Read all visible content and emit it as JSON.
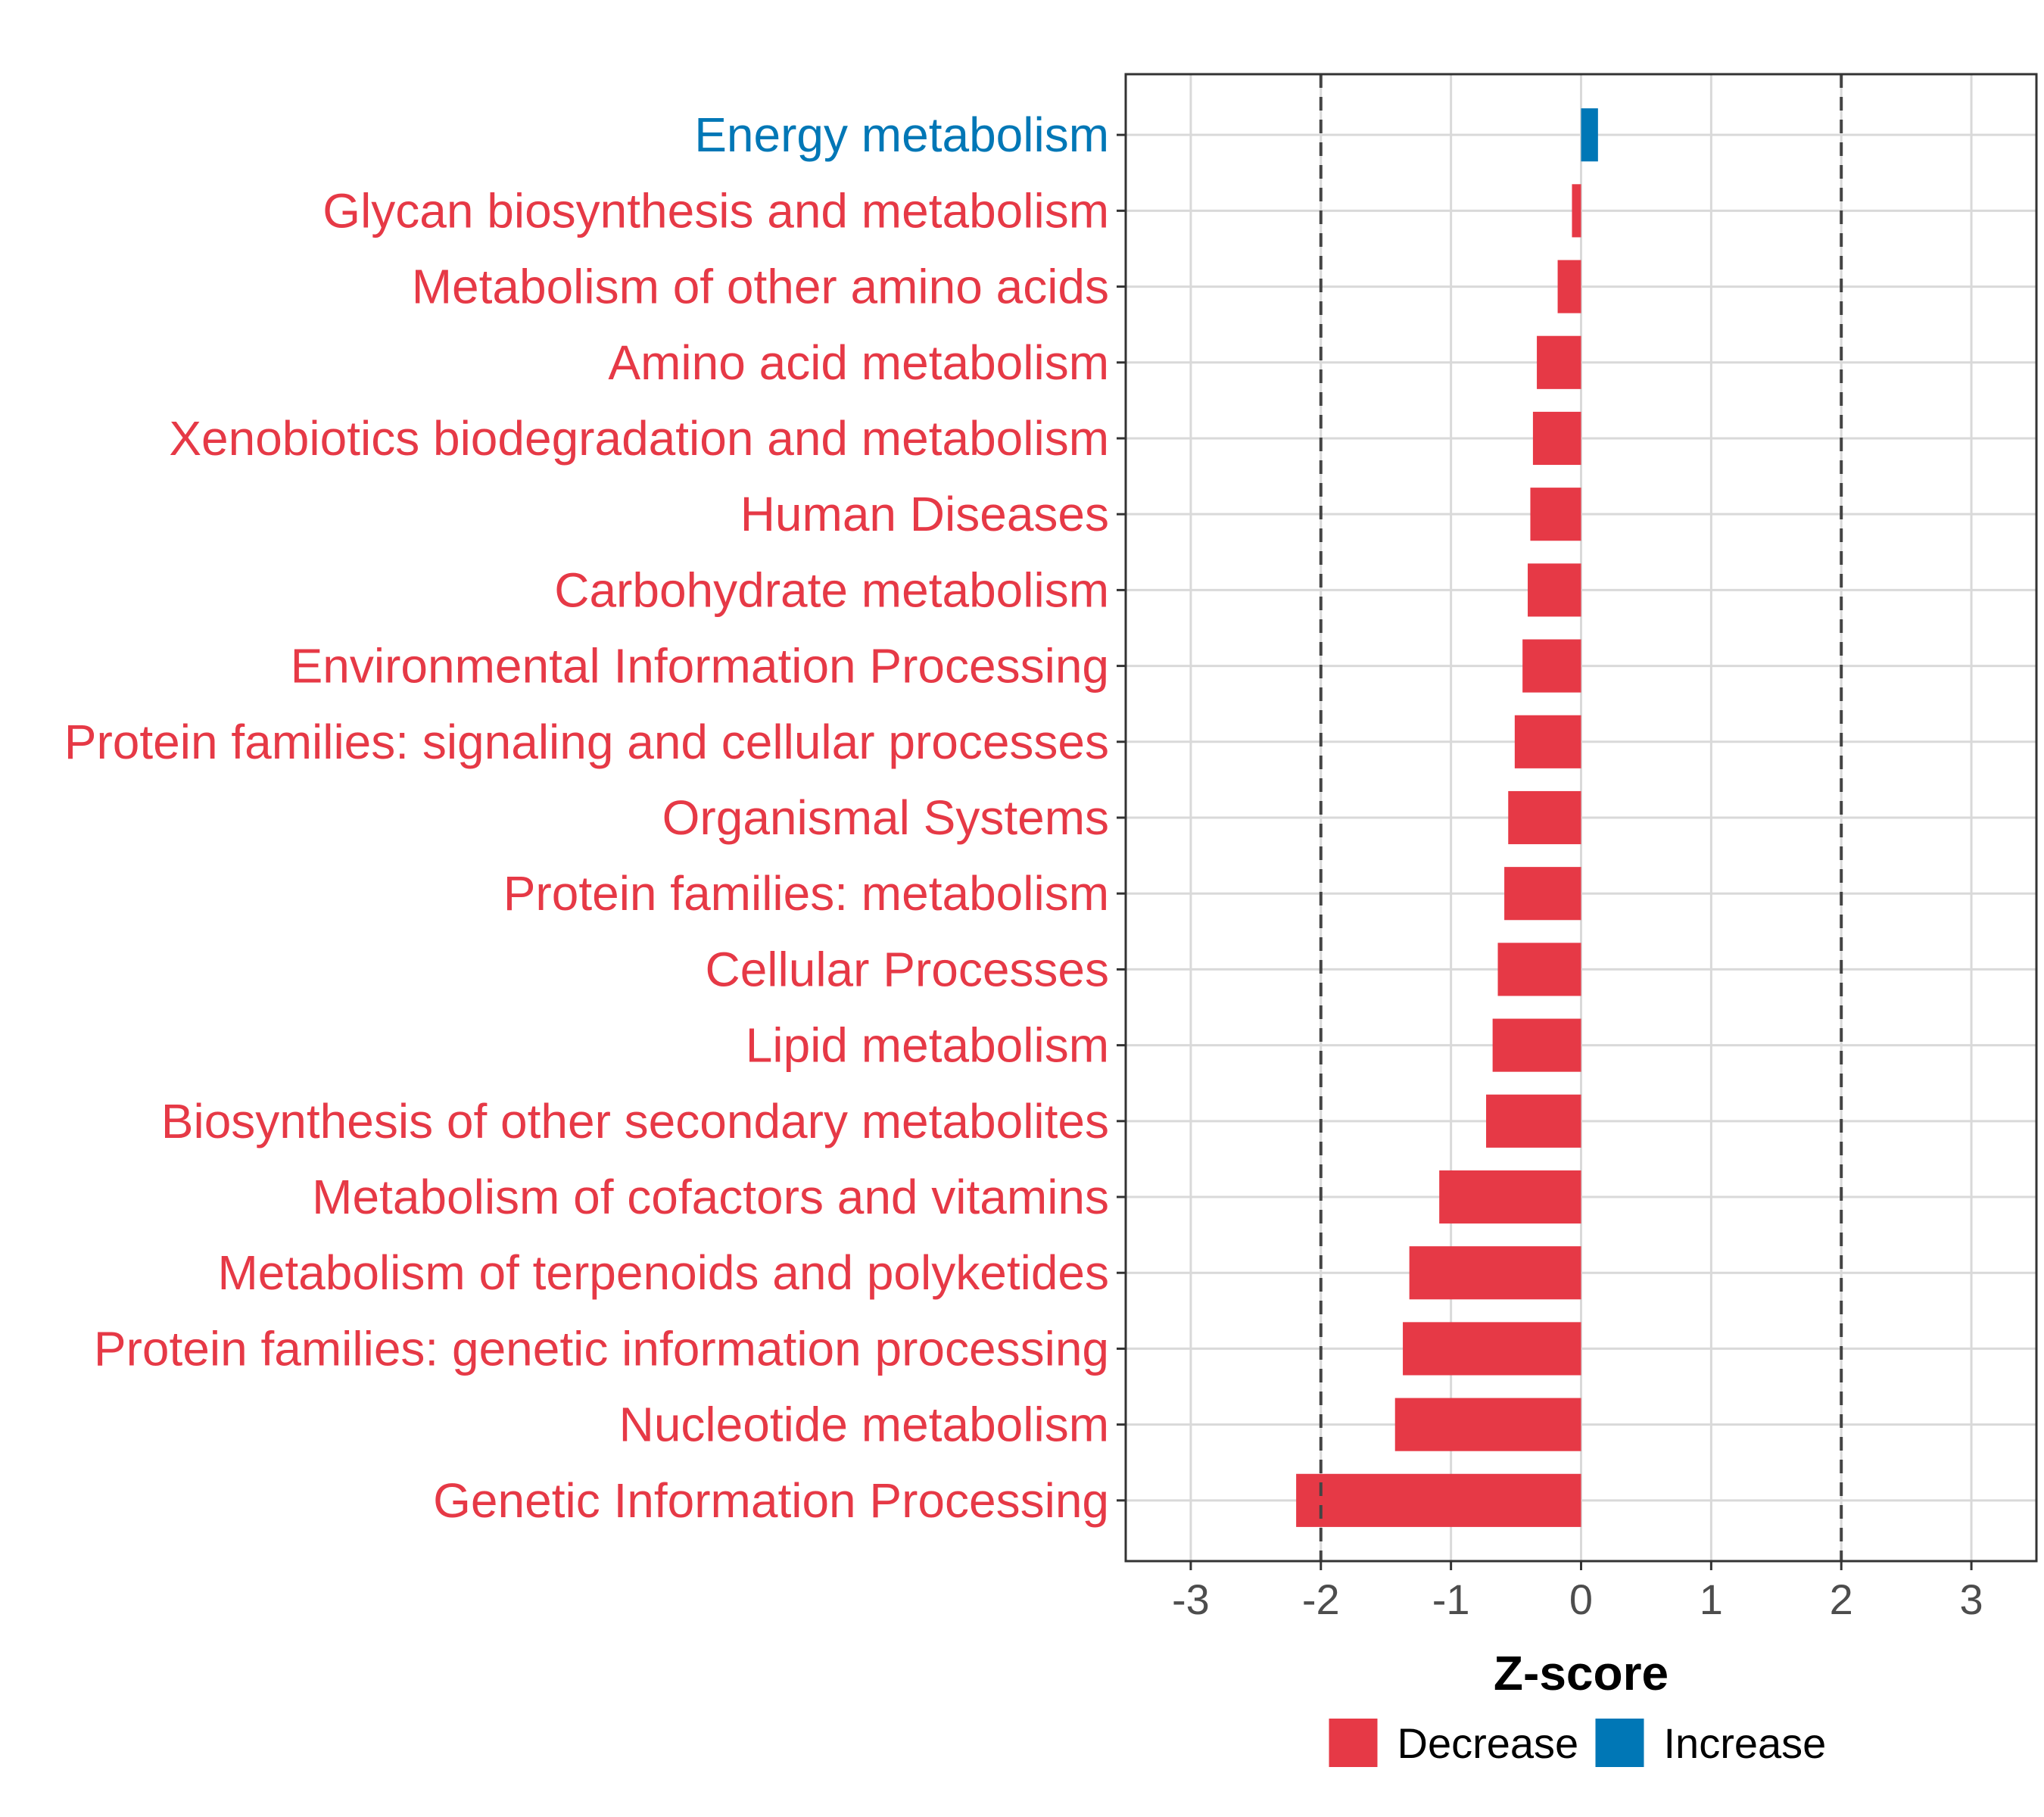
{
  "chart_data": {
    "type": "bar",
    "orientation": "horizontal",
    "title": "",
    "xlabel": "Z-score",
    "ylabel": "",
    "xlim": [
      -3.5,
      3.5
    ],
    "xticks": [
      -3,
      -2,
      -1,
      0,
      1,
      2,
      3
    ],
    "xtick_labels": [
      "-3",
      "-2",
      "-1",
      "0",
      "1",
      "2",
      "3"
    ],
    "reference_lines": [
      -2,
      2
    ],
    "grid": true,
    "categories": [
      "Energy metabolism",
      "Glycan biosynthesis and metabolism",
      "Metabolism of other amino acids",
      "Amino acid metabolism",
      "Xenobiotics biodegradation and metabolism",
      "Human Diseases",
      "Carbohydrate metabolism",
      "Environmental Information Processing",
      "Protein families: signaling and cellular processes",
      "Organismal Systems",
      "Protein families: metabolism",
      "Cellular Processes",
      "Lipid metabolism",
      "Biosynthesis of other secondary metabolites",
      "Metabolism of cofactors and vitamins",
      "Metabolism of terpenoids and polyketides",
      "Protein families: genetic information processing",
      "Nucleotide metabolism",
      "Genetic Information Processing"
    ],
    "values": [
      0.13,
      -0.07,
      -0.18,
      -0.34,
      -0.37,
      -0.39,
      -0.41,
      -0.45,
      -0.51,
      -0.56,
      -0.59,
      -0.64,
      -0.68,
      -0.73,
      -1.09,
      -1.32,
      -1.37,
      -1.43,
      -2.19
    ],
    "groups": [
      "Increase",
      "Decrease",
      "Decrease",
      "Decrease",
      "Decrease",
      "Decrease",
      "Decrease",
      "Decrease",
      "Decrease",
      "Decrease",
      "Decrease",
      "Decrease",
      "Decrease",
      "Decrease",
      "Decrease",
      "Decrease",
      "Decrease",
      "Decrease",
      "Decrease"
    ],
    "legend": {
      "position": "bottom",
      "entries": [
        {
          "label": "Decrease",
          "color": "#E63946"
        },
        {
          "label": "Increase",
          "color": "#0077B6"
        }
      ]
    },
    "colors": {
      "Decrease": "#E63946",
      "Increase": "#0077B6"
    }
  }
}
